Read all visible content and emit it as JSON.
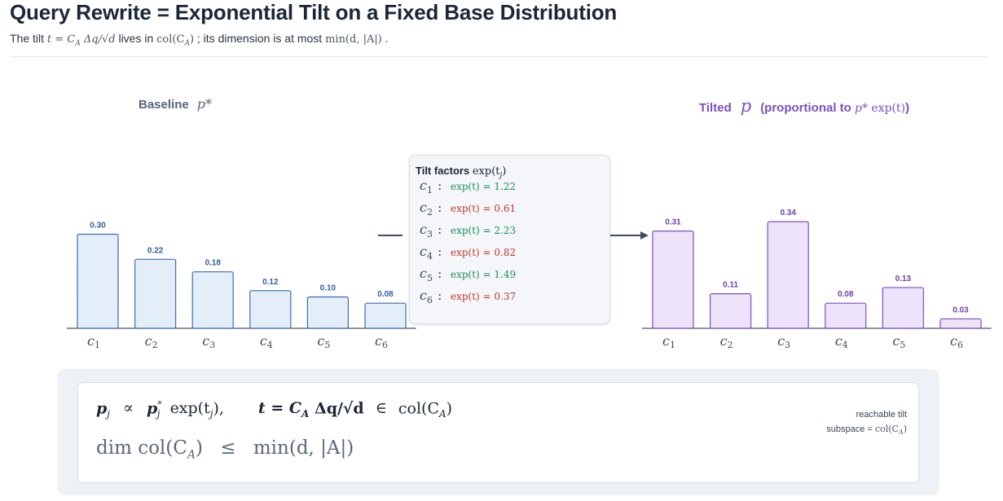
{
  "header": {
    "title": "Query Rewrite = Exponential Tilt on a Fixed Base Distribution",
    "subtitle_1": "The tilt",
    "subtitle_math_1": "t = C",
    "subtitle_math_1_sub": "A",
    "subtitle_math_1_rest": " Δq/√d",
    "subtitle_2": " lives in ",
    "subtitle_math_2": "col(C",
    "subtitle_math_2_sub": "A",
    "subtitle_math_2_rest": ")",
    "subtitle_3": "; its dimension is at most ",
    "subtitle_math_3": "min(d, |A|)",
    "subtitle_4": "."
  },
  "panels": {
    "left_title": "Baseline",
    "left_title_math": "p*",
    "right_title": "Tilted",
    "right_title_math": "p",
    "right_title_note": "(proportional to ",
    "right_title_note_math_1": "p*",
    "right_title_note_math_2": " exp(t)",
    "right_title_note_end": ")"
  },
  "colors": {
    "baseline_fill": "#e4eef9",
    "baseline_stroke": "#3b6db0",
    "baseline_label": "#2f5ea3",
    "tilted_fill": "#ede3fa",
    "tilted_stroke": "#7b4fc2",
    "tilted_label": "#6a3fae",
    "up_factor": "#1e8c5a",
    "down_factor": "#c0392b"
  },
  "tilt_box": {
    "title": "Tilt factors",
    "title_math": "exp(t",
    "title_math_sub": "j",
    "title_math_end": ")",
    "rows": [
      {
        "cat": "c",
        "sub": "1",
        "expr": "exp(t) = 1.22",
        "dir": "up"
      },
      {
        "cat": "c",
        "sub": "2",
        "expr": "exp(t) = 0.61",
        "dir": "down"
      },
      {
        "cat": "c",
        "sub": "3",
        "expr": "exp(t) = 2.23",
        "dir": "up"
      },
      {
        "cat": "c",
        "sub": "4",
        "expr": "exp(t) = 0.82",
        "dir": "down"
      },
      {
        "cat": "c",
        "sub": "5",
        "expr": "exp(t) = 1.49",
        "dir": "up"
      },
      {
        "cat": "c",
        "sub": "6",
        "expr": "exp(t) = 0.37",
        "dir": "down"
      }
    ]
  },
  "chart_data": [
    {
      "type": "bar",
      "title": "Baseline p*",
      "categories": [
        "c1",
        "c2",
        "c3",
        "c4",
        "c5",
        "c6"
      ],
      "values": [
        0.3,
        0.22,
        0.18,
        0.12,
        0.1,
        0.08
      ],
      "value_labels": [
        "0.30",
        "0.22",
        "0.18",
        "0.12",
        "0.10",
        "0.08"
      ]
    },
    {
      "type": "bar",
      "title": "Tilted p (proportional to p* exp(t))",
      "categories": [
        "c1",
        "c2",
        "c3",
        "c4",
        "c5",
        "c6"
      ],
      "values": [
        0.31,
        0.11,
        0.34,
        0.08,
        0.13,
        0.03
      ],
      "value_labels": [
        "0.31",
        "0.11",
        "0.34",
        "0.08",
        "0.13",
        "0.03"
      ]
    }
  ],
  "formula": {
    "p": "p",
    "p_sub": "j",
    "propto": "∝",
    "pstar": "p",
    "pstar_sub": "j",
    "pstar_sup": "*",
    "exp": "exp(t",
    "exp_sub": "j",
    "exp_end": "),",
    "t_def": "t = C",
    "t_def_sub": "A",
    "t_def_rest": " Δq/√d",
    "in": "∈",
    "col": "col(C",
    "col_sub": "A",
    "col_end": ")",
    "dim": "dim col(C",
    "dim_sub": "A",
    "dim_end": ")",
    "le": "≤",
    "min": "min(d, |A|)"
  },
  "reach_label": {
    "line1": "reachable tilt",
    "line2": "subspace = ",
    "line2_math": "col(C",
    "line2_math_sub": "A",
    "line2_math_end": ")"
  }
}
